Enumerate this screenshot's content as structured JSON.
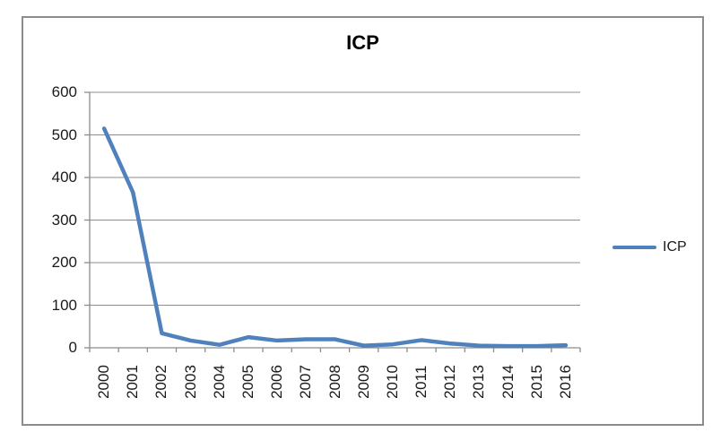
{
  "chart_data": {
    "type": "line",
    "title": "ICP",
    "categories": [
      "2000",
      "2001",
      "2002",
      "2003",
      "2004",
      "2005",
      "2006",
      "2007",
      "2008",
      "2009",
      "2010",
      "2011",
      "2012",
      "2013",
      "2014",
      "2015",
      "2016"
    ],
    "series": [
      {
        "name": "ICP",
        "color": "#4F81BD",
        "values": [
          515,
          365,
          34,
          17,
          7,
          25,
          17,
          20,
          20,
          5,
          8,
          18,
          10,
          5,
          4,
          4,
          6
        ]
      }
    ],
    "xlabel": "",
    "ylabel": "",
    "ylim": [
      0,
      600
    ],
    "y_ticks": [
      0,
      100,
      200,
      300,
      400,
      500,
      600
    ],
    "grid": true,
    "legend_position": "right",
    "colors": {
      "line": "#4F81BD",
      "grid": "#8C8C8C",
      "axis": "#8C8C8C",
      "border": "#8C8C8C",
      "text": "#1A1A1A",
      "background": "#FFFFFF"
    }
  }
}
